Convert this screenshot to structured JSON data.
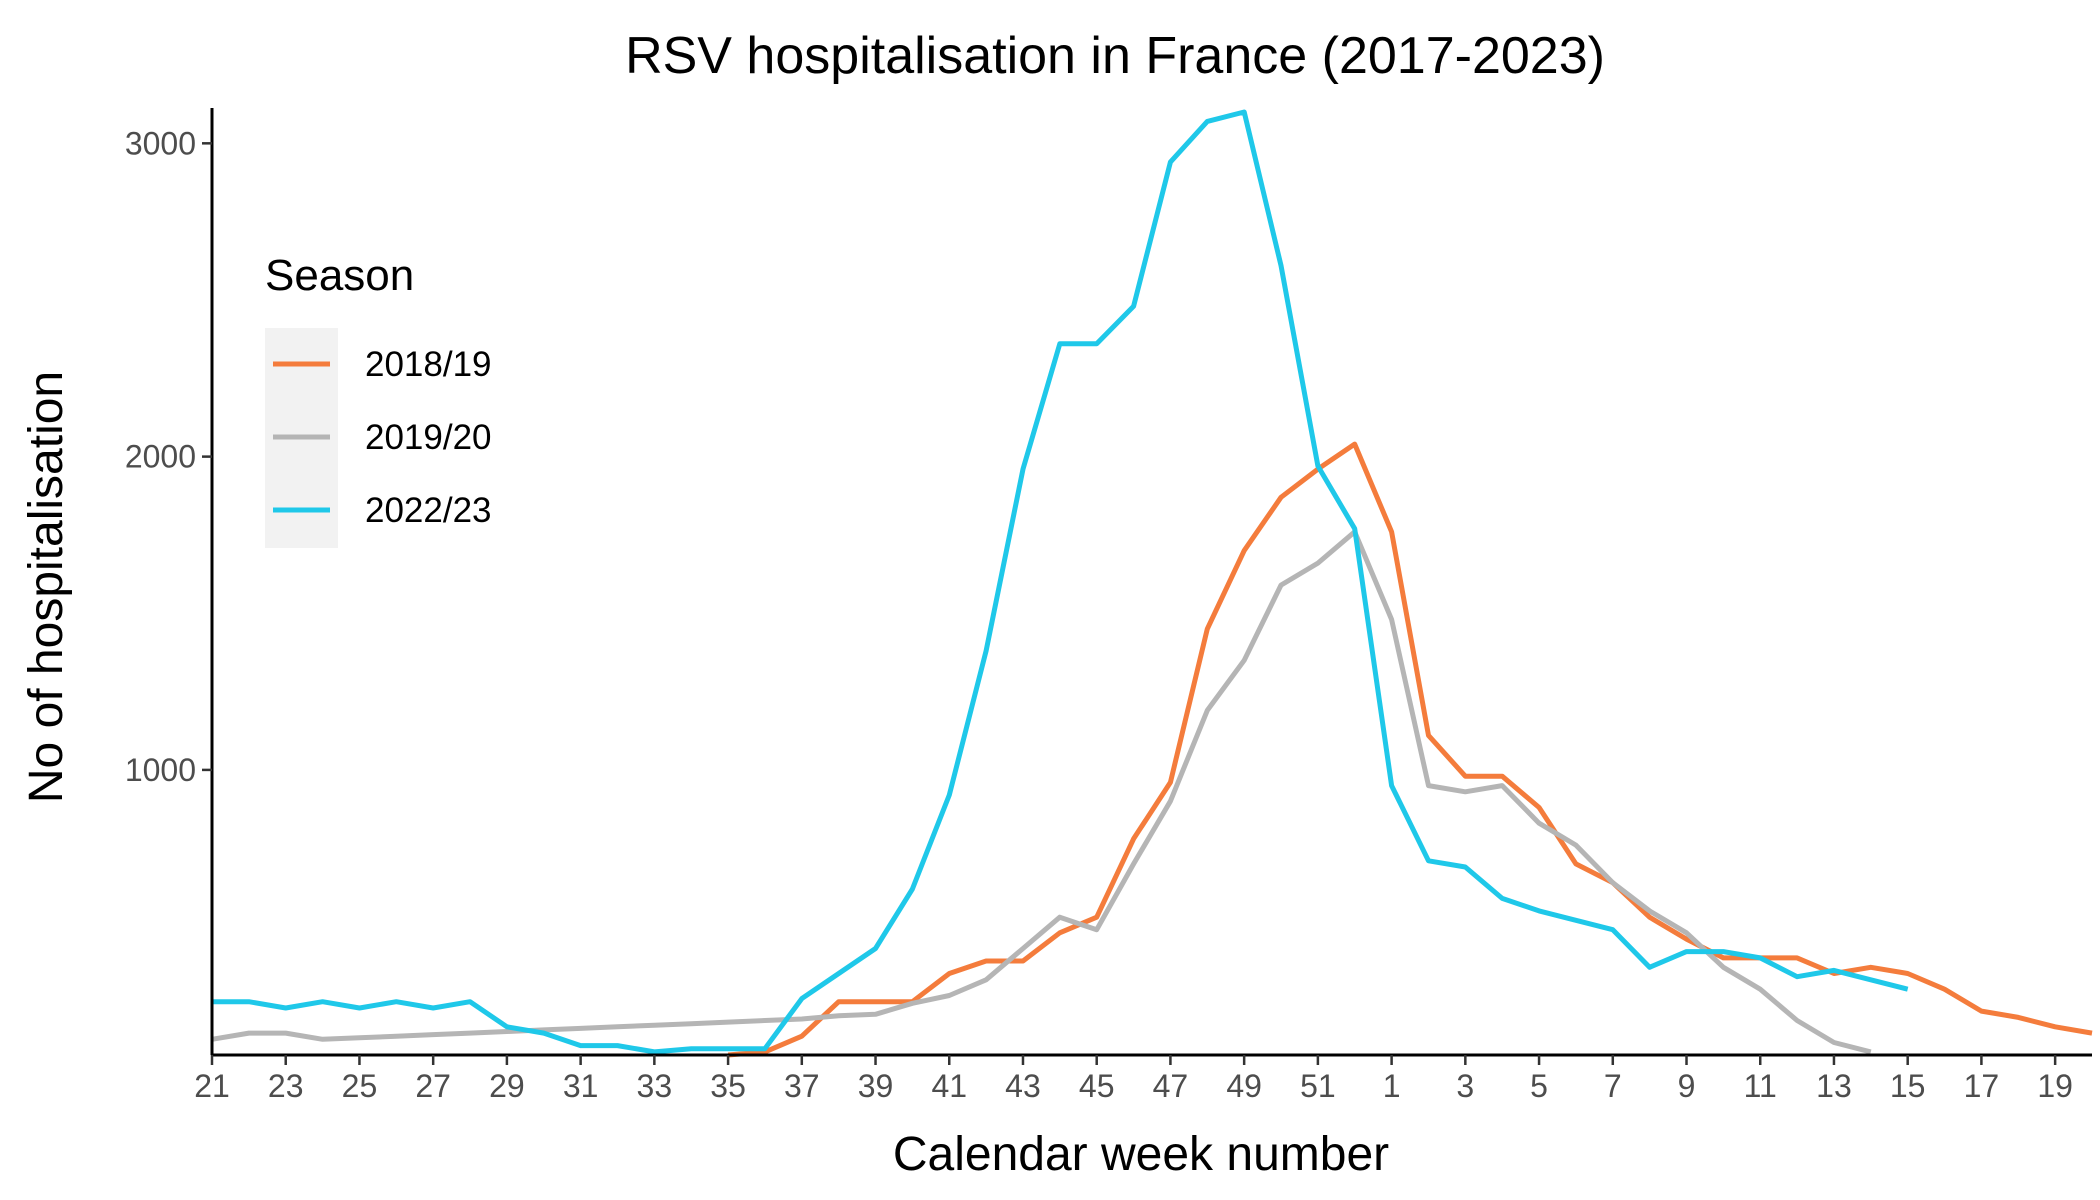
{
  "chart_data": {
    "type": "line",
    "title": "RSV hospitalisation in France (2017-2023)",
    "xlabel": "Calendar week number",
    "ylabel": "No of hospitalisation",
    "x_tick_labels": [
      "21",
      "23",
      "25",
      "27",
      "29",
      "31",
      "33",
      "35",
      "37",
      "39",
      "41",
      "43",
      "45",
      "47",
      "49",
      "51",
      "1",
      "3",
      "5",
      "7",
      "9",
      "11",
      "13",
      "15",
      "17",
      "19"
    ],
    "y_ticks": [
      1000,
      2000,
      3000
    ],
    "ylim": [
      90,
      3100
    ],
    "grid": false,
    "legend": {
      "title": "Season",
      "placement": "top-left"
    },
    "x_weeks": [
      21,
      22,
      23,
      24,
      25,
      26,
      27,
      28,
      29,
      30,
      31,
      32,
      33,
      34,
      35,
      36,
      37,
      38,
      39,
      40,
      41,
      42,
      43,
      44,
      45,
      46,
      47,
      48,
      49,
      50,
      51,
      52,
      1,
      2,
      3,
      4,
      5,
      6,
      7,
      8,
      9,
      10,
      11,
      12,
      13,
      14,
      15,
      16,
      17,
      18,
      19,
      20
    ],
    "series": [
      {
        "name": "2018/19",
        "color": "#F47C3C",
        "values": [
          null,
          null,
          null,
          null,
          null,
          null,
          null,
          null,
          null,
          null,
          null,
          null,
          null,
          null,
          90,
          100,
          150,
          260,
          260,
          260,
          350,
          390,
          390,
          480,
          530,
          780,
          960,
          1450,
          1700,
          1870,
          1960,
          2040,
          1760,
          1110,
          980,
          980,
          880,
          700,
          640,
          530,
          460,
          400,
          400,
          400,
          350,
          370,
          350,
          300,
          230,
          210,
          180,
          160
        ]
      },
      {
        "name": "2019/20",
        "color": "#B5B5B5",
        "values": [
          140,
          160,
          160,
          140,
          145,
          150,
          155,
          160,
          165,
          170,
          175,
          180,
          185,
          190,
          195,
          200,
          205,
          215,
          220,
          255,
          280,
          330,
          430,
          530,
          490,
          700,
          900,
          1190,
          1350,
          1590,
          1660,
          1760,
          1480,
          950,
          930,
          950,
          830,
          760,
          640,
          550,
          480,
          370,
          300,
          200,
          130,
          100,
          null,
          null,
          null,
          null,
          null,
          null
        ]
      },
      {
        "name": "2022/23",
        "color": "#1FC8E9",
        "values": [
          260,
          260,
          240,
          260,
          240,
          260,
          240,
          260,
          180,
          160,
          120,
          120,
          100,
          110,
          110,
          110,
          270,
          350,
          430,
          620,
          920,
          1380,
          1960,
          2360,
          2360,
          2480,
          2940,
          3070,
          3100,
          2610,
          1970,
          1770,
          950,
          710,
          690,
          590,
          550,
          520,
          490,
          370,
          420,
          420,
          400,
          340,
          360,
          330,
          300,
          null,
          null,
          null,
          null,
          null
        ]
      }
    ]
  }
}
